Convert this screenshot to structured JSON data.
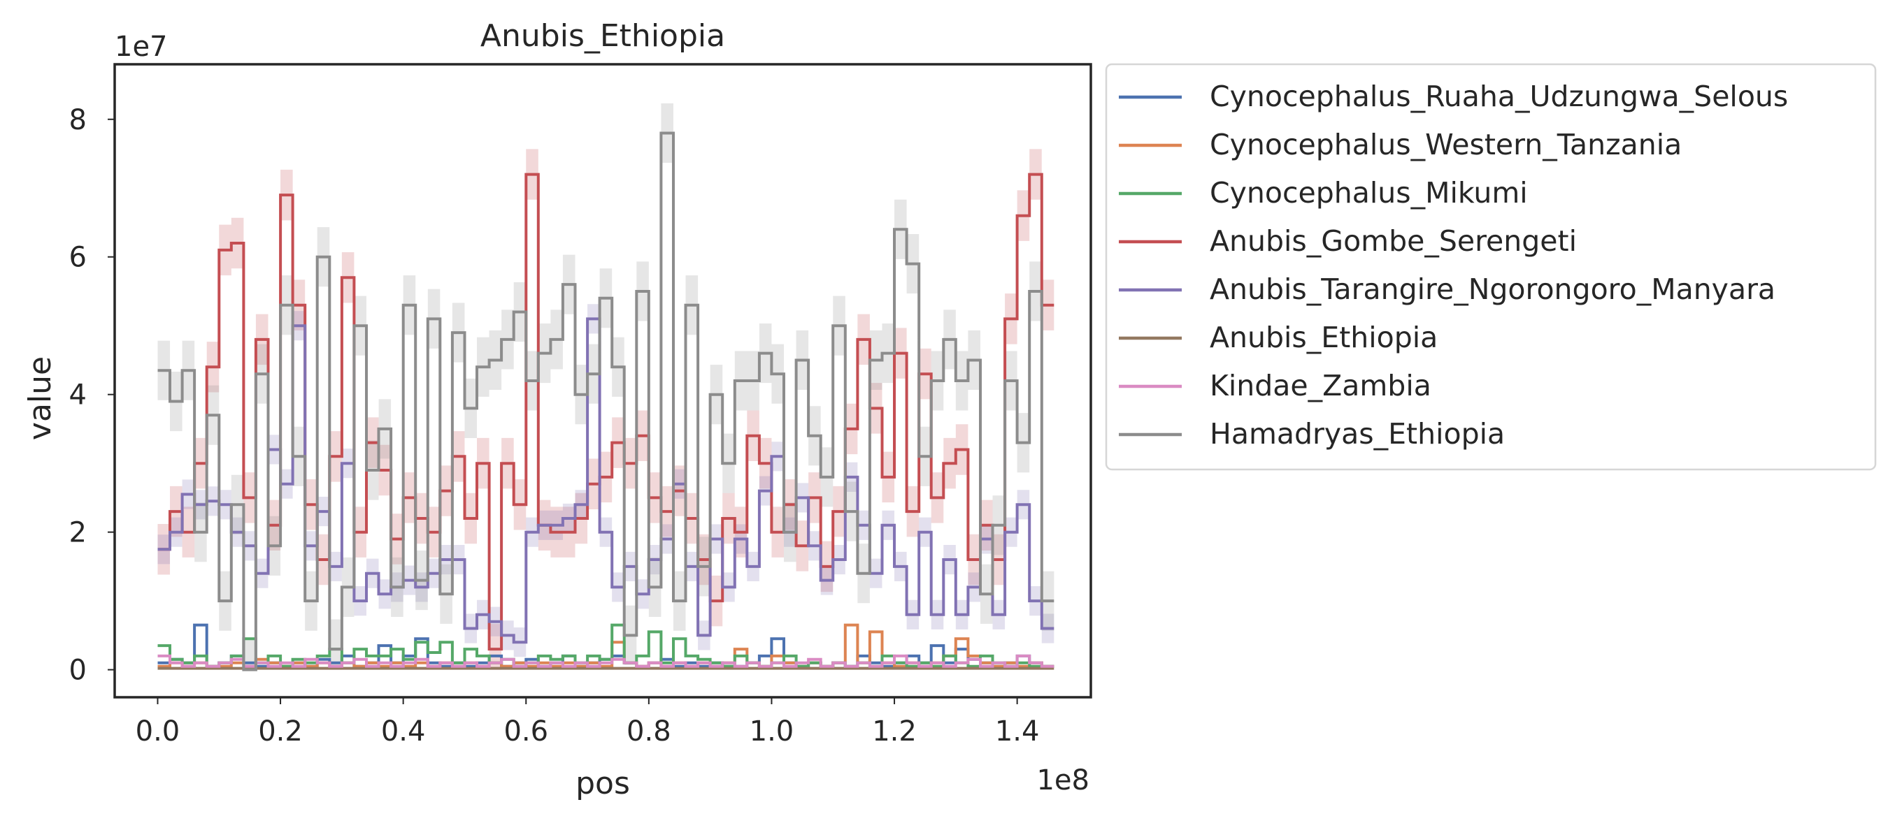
{
  "chart_data": {
    "type": "line",
    "title": "Anubis_Ethiopia",
    "xlabel": "pos",
    "ylabel": "value",
    "x_offset_label": "1e8",
    "y_offset_label": "1e7",
    "xlim": [
      -0.07,
      1.52
    ],
    "ylim": [
      -0.4,
      8.8
    ],
    "x_ticks": [
      0.0,
      0.2,
      0.4,
      0.6,
      0.8,
      1.0,
      1.2,
      1.4
    ],
    "x_tick_labels": [
      "0.0",
      "0.2",
      "0.4",
      "0.6",
      "0.8",
      "1.0",
      "1.2",
      "1.4"
    ],
    "y_ticks": [
      0,
      2,
      4,
      6,
      8
    ],
    "y_tick_labels": [
      "0",
      "2",
      "4",
      "6",
      "8"
    ],
    "grid": false,
    "legend_position": "outside right",
    "x": [
      0.0,
      0.02,
      0.04,
      0.06,
      0.08,
      0.1,
      0.12,
      0.14,
      0.16,
      0.18,
      0.2,
      0.22,
      0.24,
      0.26,
      0.28,
      0.3,
      0.32,
      0.34,
      0.36,
      0.38,
      0.4,
      0.42,
      0.44,
      0.46,
      0.48,
      0.5,
      0.52,
      0.54,
      0.56,
      0.58,
      0.6,
      0.62,
      0.64,
      0.66,
      0.68,
      0.7,
      0.72,
      0.74,
      0.76,
      0.78,
      0.8,
      0.82,
      0.84,
      0.86,
      0.88,
      0.9,
      0.92,
      0.94,
      0.96,
      0.98,
      1.0,
      1.02,
      1.04,
      1.06,
      1.08,
      1.1,
      1.12,
      1.14,
      1.16,
      1.18,
      1.2,
      1.22,
      1.24,
      1.26,
      1.28,
      1.3,
      1.32,
      1.34,
      1.36,
      1.38,
      1.4,
      1.42,
      1.44
    ],
    "series": [
      {
        "name": "Cynocephalus_Ruaha_Udzungwa_Selous",
        "color": "#4c72b0",
        "band": false,
        "values": [
          0.1,
          0.15,
          0.1,
          0.65,
          0.05,
          0.1,
          0.2,
          0.1,
          0.05,
          0.1,
          0.05,
          0.1,
          0.05,
          0.15,
          0.1,
          0.2,
          0.05,
          0.1,
          0.35,
          0.1,
          0.2,
          0.45,
          0.1,
          0.05,
          0.1,
          0.05,
          0.1,
          0.2,
          0.05,
          0.1,
          0.15,
          0.05,
          0.1,
          0.2,
          0.05,
          0.1,
          0.15,
          0.2,
          0.1,
          0.05,
          0.1,
          0.15,
          0.05,
          0.1,
          0.05,
          0.1,
          0.05,
          0.05,
          0.1,
          0.2,
          0.45,
          0.1,
          0.05,
          0.1,
          0.05,
          0.1,
          0.05,
          0.2,
          0.1,
          0.05,
          0.1,
          0.2,
          0.1,
          0.35,
          0.1,
          0.3,
          0.15,
          0.1,
          0.05,
          0.1,
          0.2,
          0.1,
          0.05
        ]
      },
      {
        "name": "Cynocephalus_Western_Tanzania",
        "color": "#dd8452",
        "band": false,
        "values": [
          0.05,
          0.1,
          0.05,
          0.1,
          0.05,
          0.05,
          0.1,
          0.05,
          0.15,
          0.1,
          0.05,
          0.1,
          0.05,
          0.1,
          0.05,
          0.1,
          0.05,
          0.1,
          0.05,
          0.1,
          0.05,
          0.1,
          0.05,
          0.1,
          0.05,
          0.1,
          0.05,
          0.1,
          0.05,
          0.1,
          0.05,
          0.1,
          0.05,
          0.1,
          0.05,
          0.1,
          0.05,
          0.4,
          0.1,
          0.05,
          0.1,
          0.05,
          0.1,
          0.05,
          0.1,
          0.05,
          0.1,
          0.3,
          0.1,
          0.05,
          0.2,
          0.1,
          0.05,
          0.1,
          0.05,
          0.1,
          0.65,
          0.1,
          0.55,
          0.1,
          0.05,
          0.1,
          0.05,
          0.1,
          0.2,
          0.45,
          0.2,
          0.1,
          0.05,
          0.1,
          0.05,
          0.1,
          0.05
        ]
      },
      {
        "name": "Cynocephalus_Mikumi",
        "color": "#55a868",
        "band": false,
        "values": [
          0.35,
          0.15,
          0.1,
          0.2,
          0.05,
          0.1,
          0.2,
          0.45,
          0.1,
          0.2,
          0.05,
          0.15,
          0.1,
          0.2,
          0.3,
          0.1,
          0.3,
          0.2,
          0.2,
          0.3,
          0.15,
          0.4,
          0.25,
          0.4,
          0.1,
          0.3,
          0.2,
          0.1,
          0.15,
          0.05,
          0.1,
          0.2,
          0.15,
          0.2,
          0.1,
          0.2,
          0.15,
          0.65,
          0.1,
          0.2,
          0.55,
          0.1,
          0.45,
          0.2,
          0.15,
          0.1,
          0.05,
          0.2,
          0.1,
          0.05,
          0.1,
          0.2,
          0.05,
          0.1,
          0.05,
          0.1,
          0.05,
          0.1,
          0.05,
          0.2,
          0.1,
          0.05,
          0.1,
          0.05,
          0.2,
          0.1,
          0.05,
          0.2,
          0.1,
          0.05,
          0.1,
          0.05,
          0.05
        ]
      },
      {
        "name": "Anubis_Gombe_Serengeti",
        "color": "#c44e52",
        "band": true,
        "values": [
          1.75,
          2.3,
          2.0,
          3.0,
          4.4,
          6.1,
          6.2,
          2.5,
          4.8,
          2.1,
          6.9,
          5.3,
          2.4,
          1.6,
          3.1,
          5.7,
          2.0,
          3.3,
          2.9,
          1.9,
          2.5,
          2.2,
          2.0,
          2.6,
          3.1,
          2.2,
          3.0,
          0.3,
          3.0,
          2.4,
          7.2,
          2.1,
          2.0,
          2.0,
          2.2,
          2.7,
          2.8,
          3.3,
          3.0,
          3.4,
          2.5,
          2.3,
          2.6,
          2.2,
          1.6,
          1.0,
          2.2,
          2.0,
          3.4,
          3.0,
          2.0,
          2.4,
          1.8,
          2.5,
          1.5,
          2.3,
          3.5,
          4.8,
          3.8,
          2.8,
          4.6,
          2.3,
          4.3,
          2.5,
          3.0,
          3.2,
          1.6,
          2.1,
          1.6,
          5.1,
          6.6,
          7.2,
          5.3
        ]
      },
      {
        "name": "Anubis_Tarangire_Ngorongoro_Manyara",
        "color": "#8172b3",
        "band": true,
        "values": [
          1.75,
          2.0,
          2.55,
          2.4,
          2.45,
          2.4,
          2.0,
          1.8,
          1.4,
          3.2,
          2.7,
          5.0,
          1.8,
          2.3,
          1.5,
          3.0,
          1.0,
          1.4,
          1.1,
          1.2,
          1.3,
          1.2,
          1.4,
          1.6,
          1.6,
          0.6,
          0.8,
          0.7,
          0.5,
          0.4,
          2.0,
          2.1,
          2.1,
          2.2,
          2.4,
          5.1,
          2.0,
          1.2,
          1.5,
          1.1,
          1.6,
          1.9,
          2.7,
          1.5,
          0.5,
          1.9,
          1.2,
          1.9,
          1.5,
          2.6,
          3.1,
          2.0,
          2.5,
          1.8,
          1.3,
          1.6,
          2.8,
          2.1,
          1.4,
          2.1,
          1.5,
          0.8,
          2.0,
          0.8,
          1.6,
          0.8,
          1.2,
          1.9,
          0.8,
          2.0,
          2.4,
          1.0,
          0.6
        ]
      },
      {
        "name": "Anubis_Ethiopia",
        "color": "#937860",
        "band": false,
        "values": [
          0.02,
          0.02,
          0.02,
          0.02,
          0.02,
          0.02,
          0.02,
          0.02,
          0.02,
          0.02,
          0.02,
          0.02,
          0.02,
          0.02,
          0.02,
          0.02,
          0.02,
          0.02,
          0.02,
          0.02,
          0.02,
          0.02,
          0.02,
          0.02,
          0.02,
          0.02,
          0.02,
          0.02,
          0.02,
          0.02,
          0.02,
          0.02,
          0.02,
          0.02,
          0.02,
          0.02,
          0.02,
          0.02,
          0.02,
          0.02,
          0.02,
          0.02,
          0.02,
          0.02,
          0.02,
          0.02,
          0.02,
          0.02,
          0.02,
          0.02,
          0.02,
          0.02,
          0.02,
          0.02,
          0.02,
          0.02,
          0.02,
          0.02,
          0.02,
          0.02,
          0.02,
          0.02,
          0.02,
          0.02,
          0.02,
          0.02,
          0.02,
          0.02,
          0.02,
          0.02,
          0.02,
          0.02,
          0.02
        ]
      },
      {
        "name": "Kindae_Zambia",
        "color": "#da8bc3",
        "band": false,
        "values": [
          0.2,
          0.1,
          0.05,
          0.1,
          0.05,
          0.1,
          0.15,
          0.05,
          0.1,
          0.05,
          0.1,
          0.05,
          0.15,
          0.1,
          0.05,
          0.1,
          0.15,
          0.05,
          0.1,
          0.05,
          0.1,
          0.15,
          0.05,
          0.1,
          0.05,
          0.1,
          0.05,
          0.1,
          0.15,
          0.05,
          0.1,
          0.05,
          0.1,
          0.05,
          0.1,
          0.05,
          0.1,
          0.15,
          0.1,
          0.05,
          0.1,
          0.05,
          0.1,
          0.05,
          0.1,
          0.05,
          0.1,
          0.05,
          0.1,
          0.05,
          0.1,
          0.05,
          0.1,
          0.15,
          0.05,
          0.1,
          0.05,
          0.1,
          0.05,
          0.1,
          0.2,
          0.1,
          0.05,
          0.1,
          0.05,
          0.1,
          0.15,
          0.05,
          0.1,
          0.05,
          0.2,
          0.1,
          0.05
        ]
      },
      {
        "name": "Hamadryas_Ethiopia",
        "color": "#8c8c8c",
        "band": true,
        "values": [
          4.35,
          3.9,
          4.35,
          2.0,
          3.7,
          1.0,
          2.4,
          0.0,
          4.3,
          1.8,
          5.3,
          3.1,
          1.0,
          6.0,
          0.3,
          1.2,
          5.0,
          2.9,
          3.5,
          1.2,
          5.3,
          1.3,
          5.1,
          1.1,
          4.9,
          3.8,
          4.4,
          4.5,
          4.8,
          5.2,
          4.2,
          4.6,
          4.8,
          5.6,
          4.0,
          4.3,
          5.4,
          4.4,
          0.5,
          5.5,
          1.2,
          7.8,
          1.0,
          5.3,
          1.5,
          4.0,
          3.0,
          4.2,
          4.2,
          4.6,
          4.3,
          2.0,
          4.5,
          3.4,
          2.8,
          5.0,
          2.3,
          1.4,
          4.5,
          4.6,
          6.4,
          5.9,
          3.1,
          4.2,
          4.8,
          4.2,
          4.5,
          1.1,
          2.1,
          4.2,
          3.3,
          5.5,
          1.0
        ]
      }
    ]
  }
}
